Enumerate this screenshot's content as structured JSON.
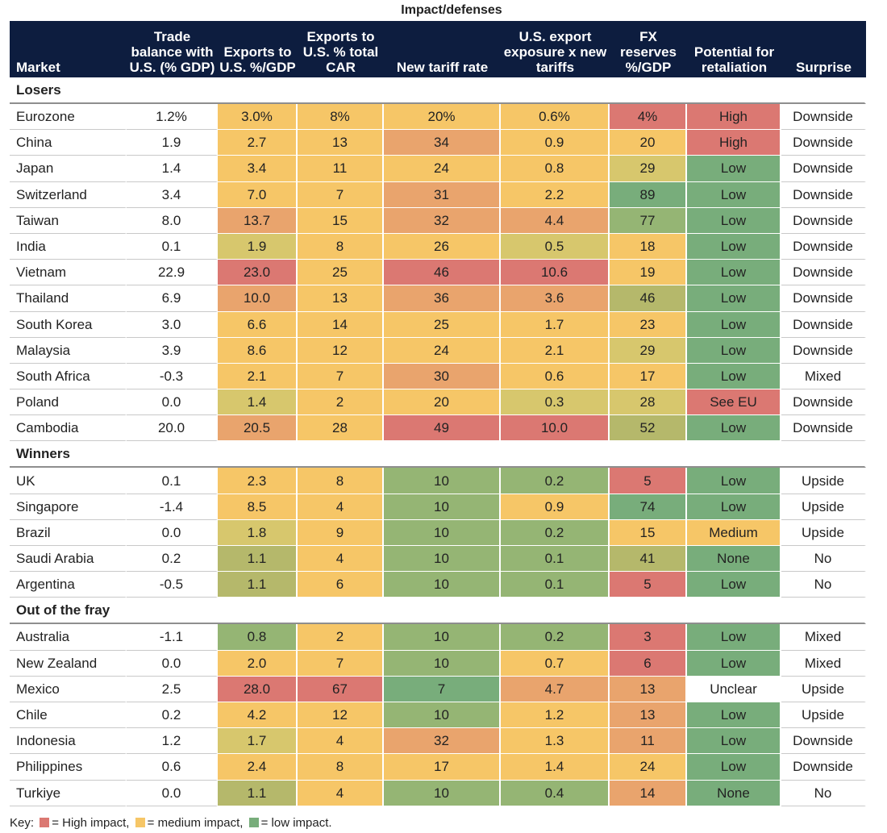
{
  "title": "Impact/defenses",
  "headers": {
    "market": "Market",
    "trade": "Trade balance with U.S. (% GDP)",
    "exports_gdp": "Exports to U.S. %/GDP",
    "exports_car": "Exports to U.S. % total CAR",
    "tariff": "New tariff rate",
    "exposure": "U.S. export exposure x new tariffs",
    "fx": "FX reserves %/GDP",
    "retaliation": "Potential for retaliation",
    "surprise": "Surprise"
  },
  "sections": [
    {
      "name": "Losers",
      "rows": [
        {
          "market": "Eurozone",
          "trade": "1.2%",
          "exports_gdp": "3.0%",
          "exports_car": "8%",
          "tariff": "20%",
          "exposure": "0.6%",
          "fx": "4%",
          "retaliation": "High",
          "surprise": "Downside",
          "c": [
            "m",
            "m",
            "m",
            "m",
            "h",
            "h"
          ]
        },
        {
          "market": "China",
          "trade": "1.9",
          "exports_gdp": "2.7",
          "exports_car": "13",
          "tariff": "34",
          "exposure": "0.9",
          "fx": "20",
          "retaliation": "High",
          "surprise": "Downside",
          "c": [
            "m",
            "m",
            "ho",
            "m",
            "m",
            "h"
          ]
        },
        {
          "market": "Japan",
          "trade": "1.4",
          "exports_gdp": "3.4",
          "exports_car": "11",
          "tariff": "24",
          "exposure": "0.8",
          "fx": "29",
          "retaliation": "Low",
          "surprise": "Downside",
          "c": [
            "m",
            "m",
            "m",
            "m",
            "yg",
            "g"
          ]
        },
        {
          "market": "Switzerland",
          "trade": "3.4",
          "exports_gdp": "7.0",
          "exports_car": "7",
          "tariff": "31",
          "exposure": "2.2",
          "fx": "89",
          "retaliation": "Low",
          "surprise": "Downside",
          "c": [
            "m",
            "m",
            "ho",
            "m",
            "g",
            "g"
          ]
        },
        {
          "market": "Taiwan",
          "trade": "8.0",
          "exports_gdp": "13.7",
          "exports_car": "15",
          "tariff": "32",
          "exposure": "4.4",
          "fx": "77",
          "retaliation": "Low",
          "surprise": "Downside",
          "c": [
            "ho",
            "m",
            "ho",
            "ho",
            "mg",
            "g"
          ]
        },
        {
          "market": "India",
          "trade": "0.1",
          "exports_gdp": "1.9",
          "exports_car": "8",
          "tariff": "26",
          "exposure": "0.5",
          "fx": "18",
          "retaliation": "Low",
          "surprise": "Downside",
          "c": [
            "yg",
            "m",
            "m",
            "yg",
            "m",
            "g"
          ]
        },
        {
          "market": "Vietnam",
          "trade": "22.9",
          "exports_gdp": "23.0",
          "exports_car": "25",
          "tariff": "46",
          "exposure": "10.6",
          "fx": "19",
          "retaliation": "Low",
          "surprise": "Downside",
          "c": [
            "h",
            "m",
            "h",
            "h",
            "m",
            "g"
          ]
        },
        {
          "market": "Thailand",
          "trade": "6.9",
          "exports_gdp": "10.0",
          "exports_car": "13",
          "tariff": "36",
          "exposure": "3.6",
          "fx": "46",
          "retaliation": "Low",
          "surprise": "Downside",
          "c": [
            "ho",
            "m",
            "ho",
            "ho",
            "lg",
            "g"
          ]
        },
        {
          "market": "South Korea",
          "trade": "3.0",
          "exports_gdp": "6.6",
          "exports_car": "14",
          "tariff": "25",
          "exposure": "1.7",
          "fx": "23",
          "retaliation": "Low",
          "surprise": "Downside",
          "c": [
            "m",
            "m",
            "m",
            "m",
            "m",
            "g"
          ]
        },
        {
          "market": "Malaysia",
          "trade": "3.9",
          "exports_gdp": "8.6",
          "exports_car": "12",
          "tariff": "24",
          "exposure": "2.1",
          "fx": "29",
          "retaliation": "Low",
          "surprise": "Downside",
          "c": [
            "m",
            "m",
            "m",
            "m",
            "yg",
            "g"
          ]
        },
        {
          "market": "South Africa",
          "trade": "-0.3",
          "exports_gdp": "2.1",
          "exports_car": "7",
          "tariff": "30",
          "exposure": "0.6",
          "fx": "17",
          "retaliation": "Low",
          "surprise": "Mixed",
          "c": [
            "m",
            "m",
            "ho",
            "m",
            "m",
            "g"
          ]
        },
        {
          "market": "Poland",
          "trade": "0.0",
          "exports_gdp": "1.4",
          "exports_car": "2",
          "tariff": "20",
          "exposure": "0.3",
          "fx": "28",
          "retaliation": "See EU",
          "surprise": "Downside",
          "c": [
            "yg",
            "m",
            "m",
            "yg",
            "yg",
            "h"
          ]
        },
        {
          "market": "Cambodia",
          "trade": "20.0",
          "exports_gdp": "20.5",
          "exports_car": "28",
          "tariff": "49",
          "exposure": "10.0",
          "fx": "52",
          "retaliation": "Low",
          "surprise": "Downside",
          "c": [
            "ho",
            "m",
            "h",
            "h",
            "lg",
            "g"
          ]
        }
      ]
    },
    {
      "name": "Winners",
      "rows": [
        {
          "market": "UK",
          "trade": "0.1",
          "exports_gdp": "2.3",
          "exports_car": "8",
          "tariff": "10",
          "exposure": "0.2",
          "fx": "5",
          "retaliation": "Low",
          "surprise": "Upside",
          "c": [
            "m",
            "m",
            "mg",
            "mg",
            "h",
            "g"
          ]
        },
        {
          "market": "Singapore",
          "trade": "-1.4",
          "exports_gdp": "8.5",
          "exports_car": "4",
          "tariff": "10",
          "exposure": "0.9",
          "fx": "74",
          "retaliation": "Low",
          "surprise": "Upside",
          "c": [
            "m",
            "m",
            "mg",
            "m",
            "g",
            "g"
          ]
        },
        {
          "market": "Brazil",
          "trade": "0.0",
          "exports_gdp": "1.8",
          "exports_car": "9",
          "tariff": "10",
          "exposure": "0.2",
          "fx": "15",
          "retaliation": "Medium",
          "surprise": "Upside",
          "c": [
            "yg",
            "m",
            "mg",
            "mg",
            "m",
            "m"
          ]
        },
        {
          "market": "Saudi Arabia",
          "trade": "0.2",
          "exports_gdp": "1.1",
          "exports_car": "4",
          "tariff": "10",
          "exposure": "0.1",
          "fx": "41",
          "retaliation": "None",
          "surprise": "No",
          "c": [
            "lg",
            "m",
            "mg",
            "mg",
            "lg",
            "g"
          ]
        },
        {
          "market": "Argentina",
          "trade": "-0.5",
          "exports_gdp": "1.1",
          "exports_car": "6",
          "tariff": "10",
          "exposure": "0.1",
          "fx": "5",
          "retaliation": "Low",
          "surprise": "No",
          "c": [
            "lg",
            "m",
            "mg",
            "mg",
            "h",
            "g"
          ]
        }
      ]
    },
    {
      "name": "Out of the fray",
      "rows": [
        {
          "market": "Australia",
          "trade": "-1.1",
          "exports_gdp": "0.8",
          "exports_car": "2",
          "tariff": "10",
          "exposure": "0.2",
          "fx": "3",
          "retaliation": "Low",
          "surprise": "Mixed",
          "c": [
            "mg",
            "m",
            "mg",
            "mg",
            "h",
            "g"
          ]
        },
        {
          "market": "New Zealand",
          "trade": "0.0",
          "exports_gdp": "2.0",
          "exports_car": "7",
          "tariff": "10",
          "exposure": "0.7",
          "fx": "6",
          "retaliation": "Low",
          "surprise": "Mixed",
          "c": [
            "m",
            "m",
            "mg",
            "m",
            "h",
            "g"
          ]
        },
        {
          "market": "Mexico",
          "trade": "2.5",
          "exports_gdp": "28.0",
          "exports_car": "67",
          "tariff": "7",
          "exposure": "4.7",
          "fx": "13",
          "retaliation": "Unclear",
          "surprise": "Upside",
          "c": [
            "h",
            "h",
            "g",
            "ho",
            "ho",
            "w"
          ]
        },
        {
          "market": "Chile",
          "trade": "0.2",
          "exports_gdp": "4.2",
          "exports_car": "12",
          "tariff": "10",
          "exposure": "1.2",
          "fx": "13",
          "retaliation": "Low",
          "surprise": "Upside",
          "c": [
            "m",
            "m",
            "mg",
            "m",
            "ho",
            "g"
          ]
        },
        {
          "market": "Indonesia",
          "trade": "1.2",
          "exports_gdp": "1.7",
          "exports_car": "4",
          "tariff": "32",
          "exposure": "1.3",
          "fx": "11",
          "retaliation": "Low",
          "surprise": "Downside",
          "c": [
            "yg",
            "m",
            "ho",
            "m",
            "ho",
            "g"
          ]
        },
        {
          "market": "Philippines",
          "trade": "0.6",
          "exports_gdp": "2.4",
          "exports_car": "8",
          "tariff": "17",
          "exposure": "1.4",
          "fx": "24",
          "retaliation": "Low",
          "surprise": "Downside",
          "c": [
            "m",
            "m",
            "m",
            "m",
            "m",
            "g"
          ]
        },
        {
          "market": "Turkiye",
          "trade": "0.0",
          "exports_gdp": "1.1",
          "exports_car": "4",
          "tariff": "10",
          "exposure": "0.4",
          "fx": "14",
          "retaliation": "None",
          "surprise": "No",
          "c": [
            "lg",
            "m",
            "mg",
            "mg",
            "ho",
            "g"
          ]
        }
      ]
    }
  ],
  "key": {
    "prefix": "Key:",
    "high": "= High impact,",
    "medium": "= medium impact,",
    "low": "= low impact."
  }
}
